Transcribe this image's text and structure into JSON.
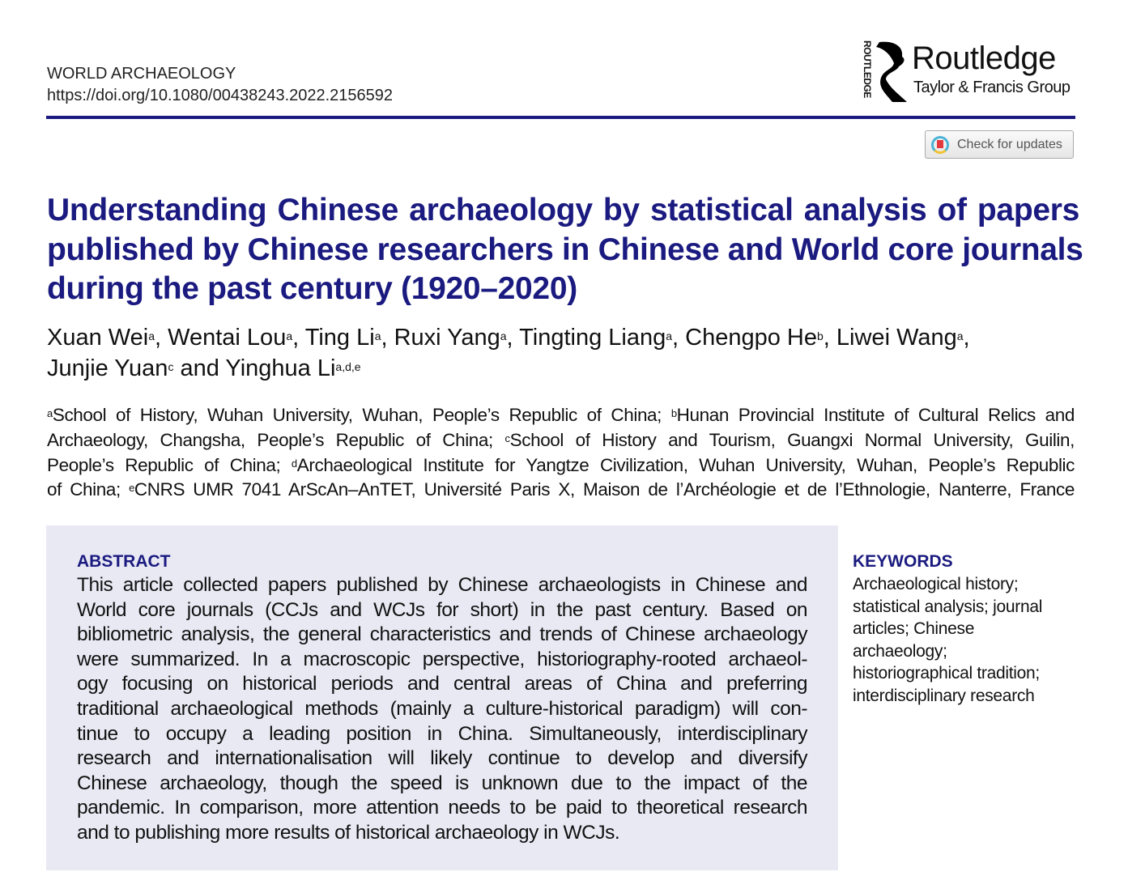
{
  "header": {
    "journal": "WORLD ARCHAEOLOGY",
    "doi": "https://doi.org/10.1080/00438243.2022.2156592"
  },
  "publisher": {
    "vertical": "ROUTLEDGE",
    "brand": "Routledge",
    "group": "Taylor & Francis Group"
  },
  "check_updates": {
    "label": "Check for updates",
    "icon": "crossmark-icon"
  },
  "title_lines": [
    "Understanding Chinese archaeology by statistical analysis of papers",
    "published by Chinese researchers in Chinese and World core journals",
    "during the past century (1920–2020)"
  ],
  "authors": [
    [
      {
        "name": "Xuan Wei",
        "sup": "a",
        "sep": ", "
      },
      {
        "name": "Wentai Lou",
        "sup": "a",
        "sep": ", "
      },
      {
        "name": "Ting Li",
        "sup": "a",
        "sep": ", "
      },
      {
        "name": "Ruxi Yang",
        "sup": "a",
        "sep": ", "
      },
      {
        "name": "Tingting Liang",
        "sup": "a",
        "sep": ", "
      },
      {
        "name": "Chengpo He",
        "sup": "b",
        "sep": ", "
      },
      {
        "name": "Liwei Wang",
        "sup": "a",
        "sep": ","
      }
    ],
    [
      {
        "name": "Junjie Yuan",
        "sup": "c",
        "sep": " and "
      },
      {
        "name": "Yinghua Li",
        "sup": "a,d,e",
        "sep": ""
      }
    ]
  ],
  "affiliation_lines": [
    [
      {
        "sup": "a",
        "text": "School of History, Wuhan University, Wuhan, People’s Republic of China; "
      },
      {
        "sup": "b",
        "text": "Hunan Provincial Institute of Cultural Relics and"
      }
    ],
    [
      {
        "sup": "",
        "text": "Archaeology, Changsha, People’s Republic of China; "
      },
      {
        "sup": "c",
        "text": "School of History and Tourism, Guangxi Normal University, Guilin,"
      }
    ],
    [
      {
        "sup": "",
        "text": "People’s Republic of China; "
      },
      {
        "sup": "d",
        "text": "Archaeological Institute for Yangtze Civilization, Wuhan University, Wuhan, People’s Republic"
      }
    ],
    [
      {
        "sup": "",
        "text": "of China; "
      },
      {
        "sup": "e",
        "text": "CNRS UMR 7041 ArScAn–AnTET, Université Paris X, Maison de l’Archéologie et de l’Ethnologie, Nanterre, France"
      }
    ]
  ],
  "abstract": {
    "heading": "ABSTRACT",
    "lines": [
      "This article collected papers published by Chinese archaeologists in Chinese and",
      "World core journals (CCJs and WCJs for short) in the past century. Based on",
      "bibliometric analysis, the general characteristics and trends of Chinese archaeology",
      "were summarized. In a macroscopic perspective, historiography-rooted archaeol-",
      "ogy focusing on historical periods and central areas of China and preferring",
      "traditional archaeological methods (mainly a culture-historical paradigm) will con-",
      "tinue to occupy a leading position in China. Simultaneously, interdisciplinary",
      "research and internationalisation will likely continue to develop and diversify",
      "Chinese archaeology, though the speed is unknown due to the impact of the",
      "pandemic. In comparison, more attention needs to be paid to theoretical research",
      "and to publishing more results of historical archaeology in WCJs."
    ]
  },
  "keywords": {
    "heading": "KEYWORDS",
    "lines": [
      "Archaeological history;",
      "statistical analysis; journal",
      "articles; Chinese",
      "archaeology;",
      "historiographical tradition;",
      "interdisciplinary research"
    ]
  },
  "colors": {
    "accent": "#1a1a80",
    "abstract_bg": "#e9e9f4"
  }
}
